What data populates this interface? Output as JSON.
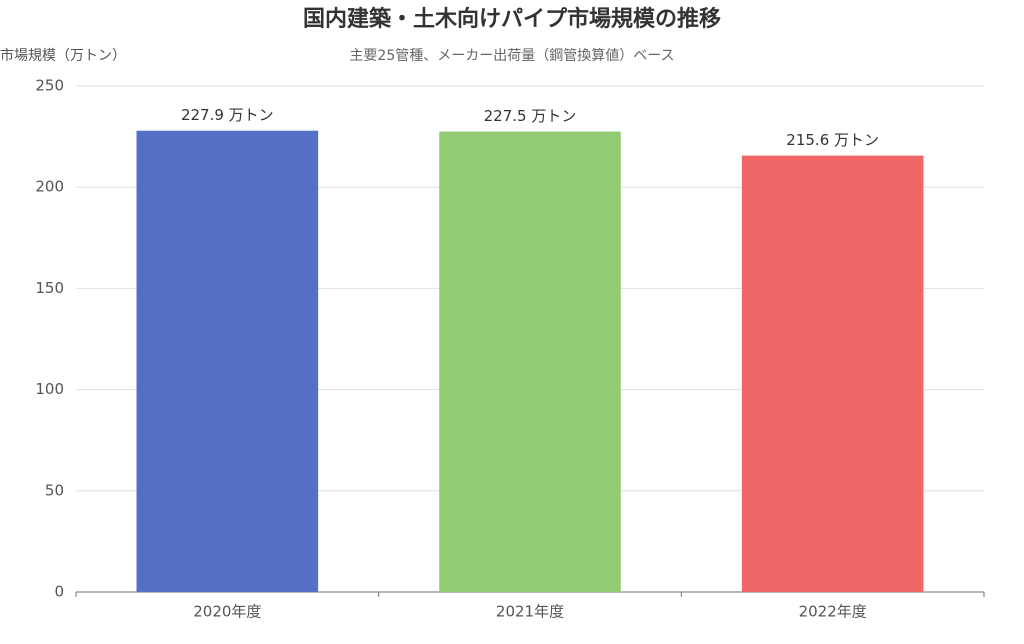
{
  "chart_data": {
    "type": "bar",
    "title": "国内建築・土木向けパイプ市場規模の推移",
    "subtitle": "主要25管種、メーカー出荷量（鋼管換算値）ベース",
    "y_label": "市場規模（万トン）",
    "categories": [
      "2020年度",
      "2021年度",
      "2022年度"
    ],
    "values": [
      227.9,
      227.5,
      215.6
    ],
    "value_labels": [
      "227.9 万トン",
      "227.5 万トン",
      "215.6 万トン"
    ],
    "colors": [
      "#5470c6",
      "#91cc75",
      "#ee6666"
    ],
    "ylim": [
      0,
      250
    ],
    "yticks": [
      0,
      50,
      100,
      150,
      200,
      250
    ],
    "grid": true
  }
}
